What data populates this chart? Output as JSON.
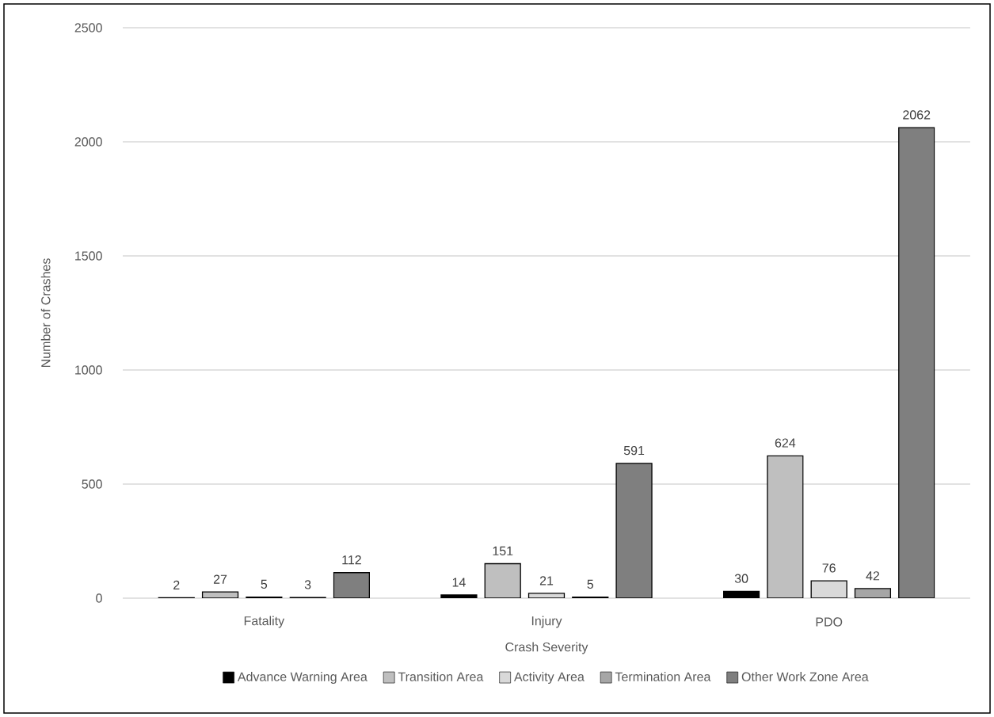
{
  "chart_data": {
    "type": "bar",
    "xlabel": "Crash Severity",
    "ylabel": "Number of Crashes",
    "categories": [
      "Fatality",
      "Injury",
      "PDO"
    ],
    "series": [
      {
        "name": "Advance Warning Area",
        "color": "#000000",
        "values": [
          2,
          14,
          30
        ]
      },
      {
        "name": "Transition Area",
        "color": "#bfbfbf",
        "values": [
          27,
          151,
          624
        ]
      },
      {
        "name": "Activity Area",
        "color": "#d9d9d9",
        "values": [
          5,
          21,
          76
        ]
      },
      {
        "name": "Termination Area",
        "color": "#a6a6a6",
        "values": [
          3,
          5,
          42
        ]
      },
      {
        "name": "Other Work Zone Area",
        "color": "#7f7f7f",
        "values": [
          112,
          591,
          2062
        ]
      }
    ],
    "ylim": [
      0,
      2500
    ],
    "yticks": [
      0,
      500,
      1000,
      1500,
      2000,
      2500
    ],
    "grid": "y",
    "legend": "bottom",
    "data_labels": true
  }
}
